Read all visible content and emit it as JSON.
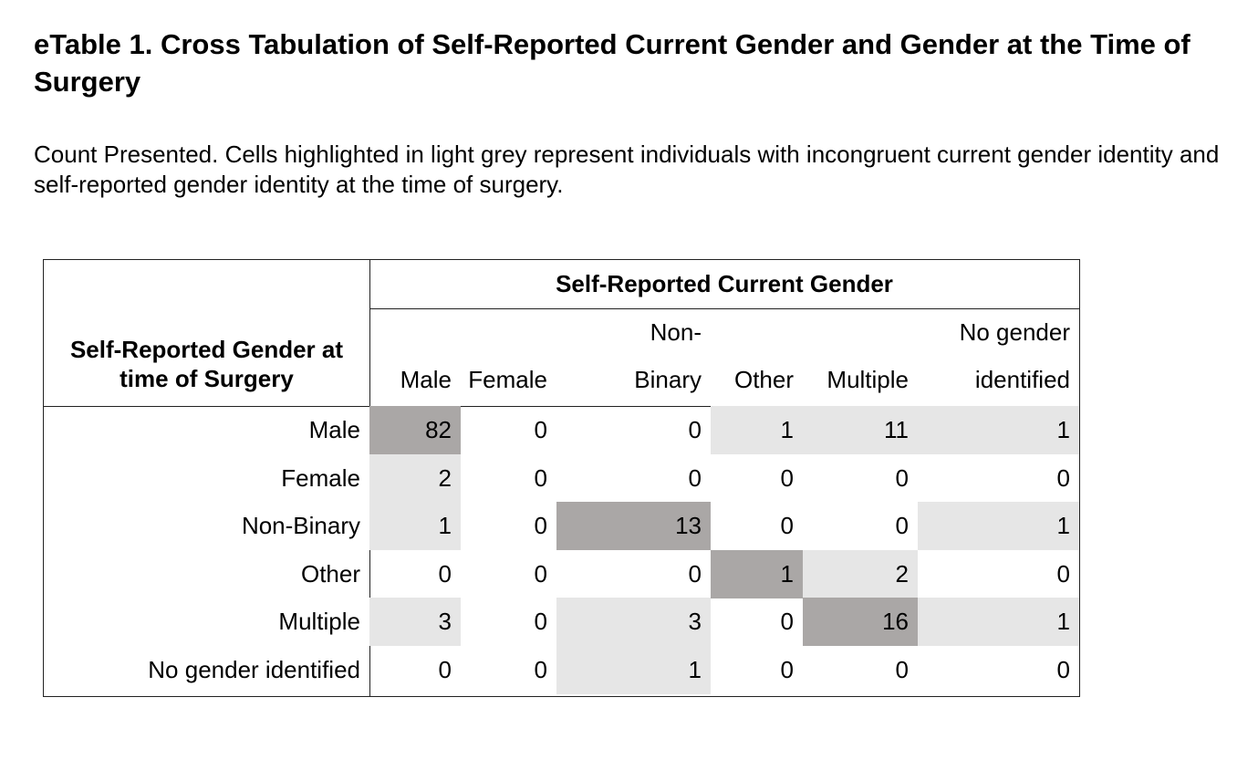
{
  "title": "eTable 1. Cross Tabulation of Self-Reported Current Gender and Gender at the Time of Surgery",
  "subtitle": "Count Presented. Cells highlighted in light grey represent individuals with incongruent current gender identity and self-reported gender identity at the time of surgery.",
  "table": {
    "corner_header": "Self-Reported Gender at time of Surgery",
    "group_header": "Self-Reported Current Gender",
    "columns": [
      "Male",
      "Female",
      "Non-Binary",
      "Other",
      "Multiple",
      "No gender identified"
    ],
    "column_header_lines": [
      [
        "",
        "Male"
      ],
      [
        "",
        "Female"
      ],
      [
        "Non-",
        "Binary"
      ],
      [
        "",
        "Other"
      ],
      [
        "",
        "Multiple"
      ],
      [
        "No gender",
        "identified"
      ]
    ],
    "rows": [
      {
        "label": "Male",
        "values": [
          "82",
          "0",
          "0",
          "1",
          "11",
          "1"
        ],
        "shading": [
          "dark",
          "none",
          "none",
          "light",
          "light",
          "light"
        ]
      },
      {
        "label": "Female",
        "values": [
          "2",
          "0",
          "0",
          "0",
          "0",
          "0"
        ],
        "shading": [
          "light",
          "none",
          "none",
          "none",
          "none",
          "none"
        ]
      },
      {
        "label": "Non-Binary",
        "values": [
          "1",
          "0",
          "13",
          "0",
          "0",
          "1"
        ],
        "shading": [
          "light",
          "none",
          "dark",
          "none",
          "none",
          "light"
        ]
      },
      {
        "label": "Other",
        "values": [
          "0",
          "0",
          "0",
          "1",
          "2",
          "0"
        ],
        "shading": [
          "none",
          "none",
          "none",
          "dark",
          "light",
          "none"
        ]
      },
      {
        "label": "Multiple",
        "values": [
          "3",
          "0",
          "3",
          "0",
          "16",
          "1"
        ],
        "shading": [
          "light",
          "none",
          "light",
          "none",
          "dark",
          "light"
        ]
      },
      {
        "label": "No gender identified",
        "values": [
          "0",
          "0",
          "1",
          "0",
          "0",
          "0"
        ],
        "shading": [
          "none",
          "none",
          "light",
          "none",
          "none",
          "none"
        ]
      }
    ],
    "colors": {
      "light_shade": "#e6e6e6",
      "dark_shade": "#aaa7a6",
      "border": "#222222"
    }
  }
}
